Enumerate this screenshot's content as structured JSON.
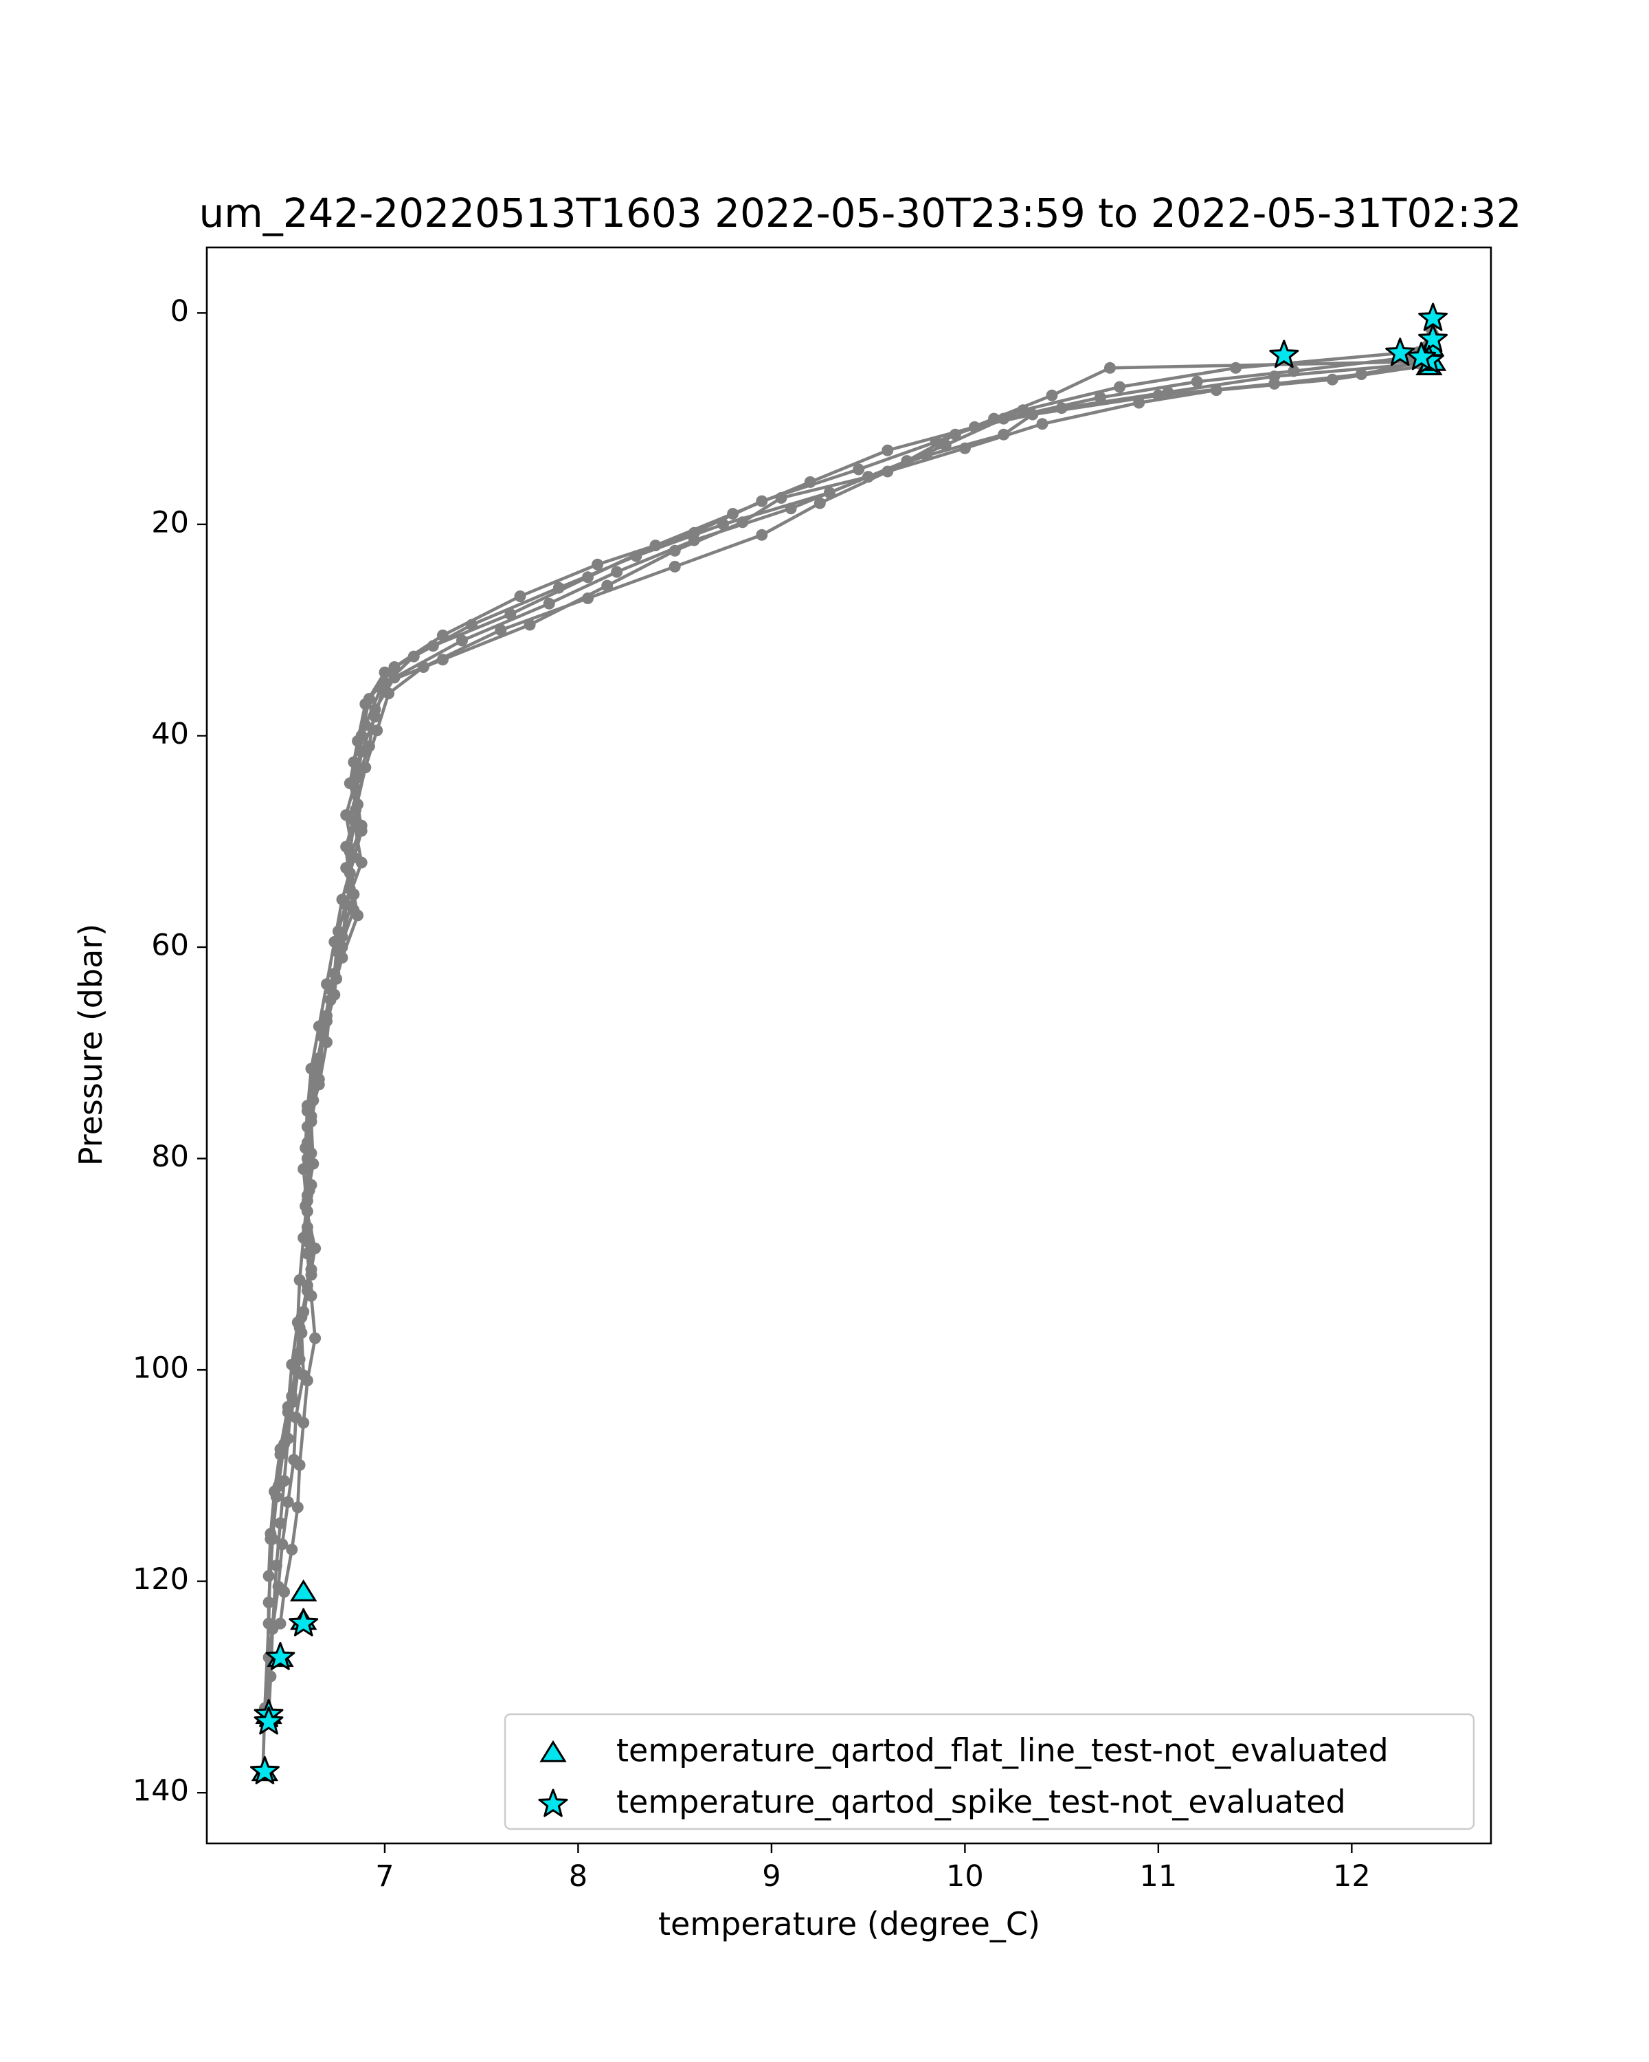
{
  "chart_data": {
    "type": "scatter",
    "title": "um_242-20220513T1603 2022-05-30T23:59 to 2022-05-31T02:32",
    "xlabel": "temperature (degree_C)",
    "ylabel": "Pressure (dbar)",
    "xlim": [
      6.08,
      12.72
    ],
    "ylim": [
      144.8,
      -6.2
    ],
    "y_inverted": true,
    "xticks": [
      7,
      8,
      9,
      10,
      11,
      12
    ],
    "yticks": [
      0,
      20,
      40,
      60,
      80,
      100,
      120,
      140
    ],
    "grid": false,
    "legend_position": "lower-right",
    "colors": {
      "profile_line": "#808080",
      "flag_fill": "#00e5ee",
      "flag_edge": "#000000"
    },
    "profiles": [
      {
        "x": [
          12.42,
          12.4,
          12.05,
          11.6,
          11.0,
          10.35,
          10.2,
          9.8,
          9.5,
          9.05,
          8.85,
          8.5,
          8.15,
          7.75,
          7.3,
          7.0,
          6.95,
          6.88,
          6.85,
          6.88,
          6.82,
          6.86,
          6.78,
          6.72,
          6.7,
          6.66,
          6.6,
          6.58,
          6.6,
          6.6,
          6.62,
          6.64,
          6.6,
          6.58,
          6.56,
          6.55,
          6.52,
          6.48,
          6.46
        ],
        "y": [
          0.5,
          4.5,
          5.8,
          6.7,
          7.8,
          9.6,
          11.5,
          13.5,
          15.5,
          17.5,
          19.8,
          22.5,
          25.8,
          29.5,
          32.8,
          35.0,
          38.2,
          41.5,
          45.0,
          49.0,
          53.0,
          57.0,
          61.0,
          65.0,
          69.0,
          73.0,
          77.0,
          81.0,
          85.0,
          89.0,
          93.0,
          97.0,
          101.0,
          105.0,
          109.0,
          113.0,
          117.0,
          121.0,
          124.0
        ]
      },
      {
        "x": [
          12.41,
          12.35,
          11.6,
          11.05,
          10.5,
          10.05,
          9.6,
          9.2,
          8.8,
          8.4,
          8.05,
          7.65,
          7.25,
          7.0,
          6.9,
          6.86,
          6.82,
          6.88,
          6.8,
          6.84,
          6.76,
          6.74,
          6.68,
          6.66,
          6.62,
          6.63,
          6.59,
          6.64,
          6.6,
          6.57,
          6.58,
          6.54,
          6.53,
          6.5,
          6.47,
          6.45,
          6.42,
          6.4
        ],
        "y": [
          2.5,
          4.8,
          6.0,
          7.5,
          9.0,
          10.8,
          13.0,
          16.0,
          19.0,
          22.0,
          25.0,
          28.5,
          31.5,
          34.0,
          37.0,
          40.5,
          44.5,
          48.5,
          52.5,
          56.5,
          60.5,
          64.5,
          68.5,
          72.5,
          76.5,
          80.5,
          84.5,
          88.5,
          92.5,
          96.5,
          100.5,
          104.5,
          108.5,
          112.5,
          116.5,
          120.5,
          124.5,
          127.2
        ]
      },
      {
        "x": [
          12.4,
          12.25,
          11.4,
          10.8,
          10.3,
          9.95,
          9.7,
          9.3,
          8.75,
          8.3,
          7.9,
          7.45,
          7.15,
          6.98,
          6.9,
          6.84,
          6.86,
          6.8,
          6.82,
          6.76,
          6.74,
          6.7,
          6.66,
          6.63,
          6.6,
          6.62,
          6.6,
          6.62,
          6.58,
          6.55,
          6.52,
          6.5,
          6.48,
          6.46,
          6.44,
          6.42,
          6.41,
          6.4
        ],
        "y": [
          3.0,
          3.8,
          5.2,
          7.0,
          9.2,
          11.5,
          14.0,
          17.0,
          20.0,
          23.0,
          26.0,
          29.5,
          32.5,
          35.5,
          39.0,
          42.5,
          46.5,
          50.5,
          54.5,
          58.5,
          62.5,
          66.5,
          70.5,
          74.5,
          78.5,
          82.5,
          86.5,
          90.5,
          94.5,
          98.5,
          102.5,
          106.5,
          110.5,
          114.5,
          118.5,
          124.5,
          129.0,
          132.6
        ]
      },
      {
        "x": [
          12.42,
          12.3,
          11.7,
          11.2,
          10.7,
          10.2,
          9.9,
          9.5,
          9.1,
          8.6,
          8.2,
          7.85,
          7.4,
          7.05,
          6.95,
          6.92,
          6.86,
          6.84,
          6.88,
          6.8,
          6.78,
          6.72,
          6.68,
          6.64,
          6.62,
          6.6,
          6.6,
          6.61,
          6.6,
          6.56,
          6.54,
          6.5,
          6.46,
          6.44,
          6.42,
          6.4,
          6.39
        ],
        "y": [
          2.0,
          4.2,
          5.5,
          6.5,
          8.0,
          10.0,
          12.5,
          15.5,
          18.5,
          21.5,
          24.5,
          27.5,
          31.0,
          34.5,
          37.5,
          41.0,
          44.0,
          48.0,
          52.0,
          56.0,
          60.0,
          64.0,
          68.0,
          72.0,
          76.0,
          80.0,
          84.0,
          88.0,
          92.0,
          96.0,
          100.0,
          104.0,
          108.0,
          112.0,
          116.0,
          122.0,
          133.3
        ]
      },
      {
        "x": [
          12.41,
          12.38,
          11.9,
          11.3,
          10.9,
          10.4,
          10.0,
          9.6,
          9.25,
          8.95,
          8.5,
          8.05,
          7.6,
          7.2,
          7.02,
          6.96,
          6.9,
          6.85,
          6.82,
          6.84,
          6.78,
          6.75,
          6.7,
          6.65,
          6.6,
          6.59,
          6.61,
          6.6,
          6.62,
          6.57,
          6.56,
          6.53,
          6.48,
          6.45,
          6.41,
          6.4,
          6.38,
          6.37
        ],
        "y": [
          1.5,
          5.0,
          6.3,
          7.3,
          8.5,
          10.5,
          12.8,
          15.0,
          18.0,
          21.0,
          24.0,
          27.0,
          30.0,
          33.5,
          36.0,
          39.5,
          43.0,
          47.0,
          51.0,
          55.0,
          59.0,
          63.0,
          67.0,
          71.0,
          75.0,
          79.0,
          83.0,
          87.0,
          91.0,
          95.0,
          99.0,
          103.0,
          107.0,
          111.0,
          116.0,
          124.0,
          132.0,
          138.0
        ]
      },
      {
        "x": [
          12.4,
          12.36,
          10.75,
          10.45,
          10.15,
          9.85,
          9.45,
          8.95,
          8.6,
          8.1,
          7.7,
          7.3,
          7.05,
          6.92,
          6.88,
          6.86,
          6.8,
          6.84,
          6.78,
          6.74,
          6.7,
          6.66,
          6.62,
          6.6,
          6.62,
          6.6,
          6.58,
          6.56,
          6.55,
          6.52,
          6.5,
          6.46,
          6.43,
          6.41,
          6.4
        ],
        "y": [
          4.0,
          4.6,
          5.2,
          7.8,
          10.0,
          12.2,
          14.8,
          17.8,
          20.8,
          23.8,
          26.8,
          30.5,
          33.5,
          36.5,
          40.0,
          43.5,
          47.5,
          51.5,
          55.5,
          59.5,
          63.5,
          67.5,
          71.5,
          75.5,
          79.5,
          83.5,
          87.5,
          91.5,
          95.5,
          99.5,
          103.5,
          107.5,
          111.5,
          115.5,
          119.5
        ]
      }
    ],
    "flat_line_flags": {
      "label": "temperature_qartod_flat_line_test-not_evaluated",
      "marker": "triangle",
      "points": [
        [
          12.4,
          5.0
        ],
        [
          12.42,
          4.6
        ],
        [
          12.41,
          3.2
        ],
        [
          6.58,
          121.0
        ],
        [
          6.58,
          123.7
        ],
        [
          6.46,
          127.2
        ],
        [
          6.4,
          132.6
        ],
        [
          6.38,
          138.0
        ]
      ]
    },
    "spike_flags": {
      "label": "temperature_qartod_spike_test-not_evaluated",
      "marker": "star",
      "points": [
        [
          12.42,
          0.5
        ],
        [
          12.42,
          2.5
        ],
        [
          12.4,
          4.5
        ],
        [
          12.36,
          4.2
        ],
        [
          12.25,
          3.8
        ],
        [
          11.65,
          4.0
        ],
        [
          6.58,
          124.0
        ],
        [
          6.46,
          127.2
        ],
        [
          6.4,
          132.6
        ],
        [
          6.4,
          133.3
        ],
        [
          6.38,
          138.0
        ]
      ]
    }
  }
}
